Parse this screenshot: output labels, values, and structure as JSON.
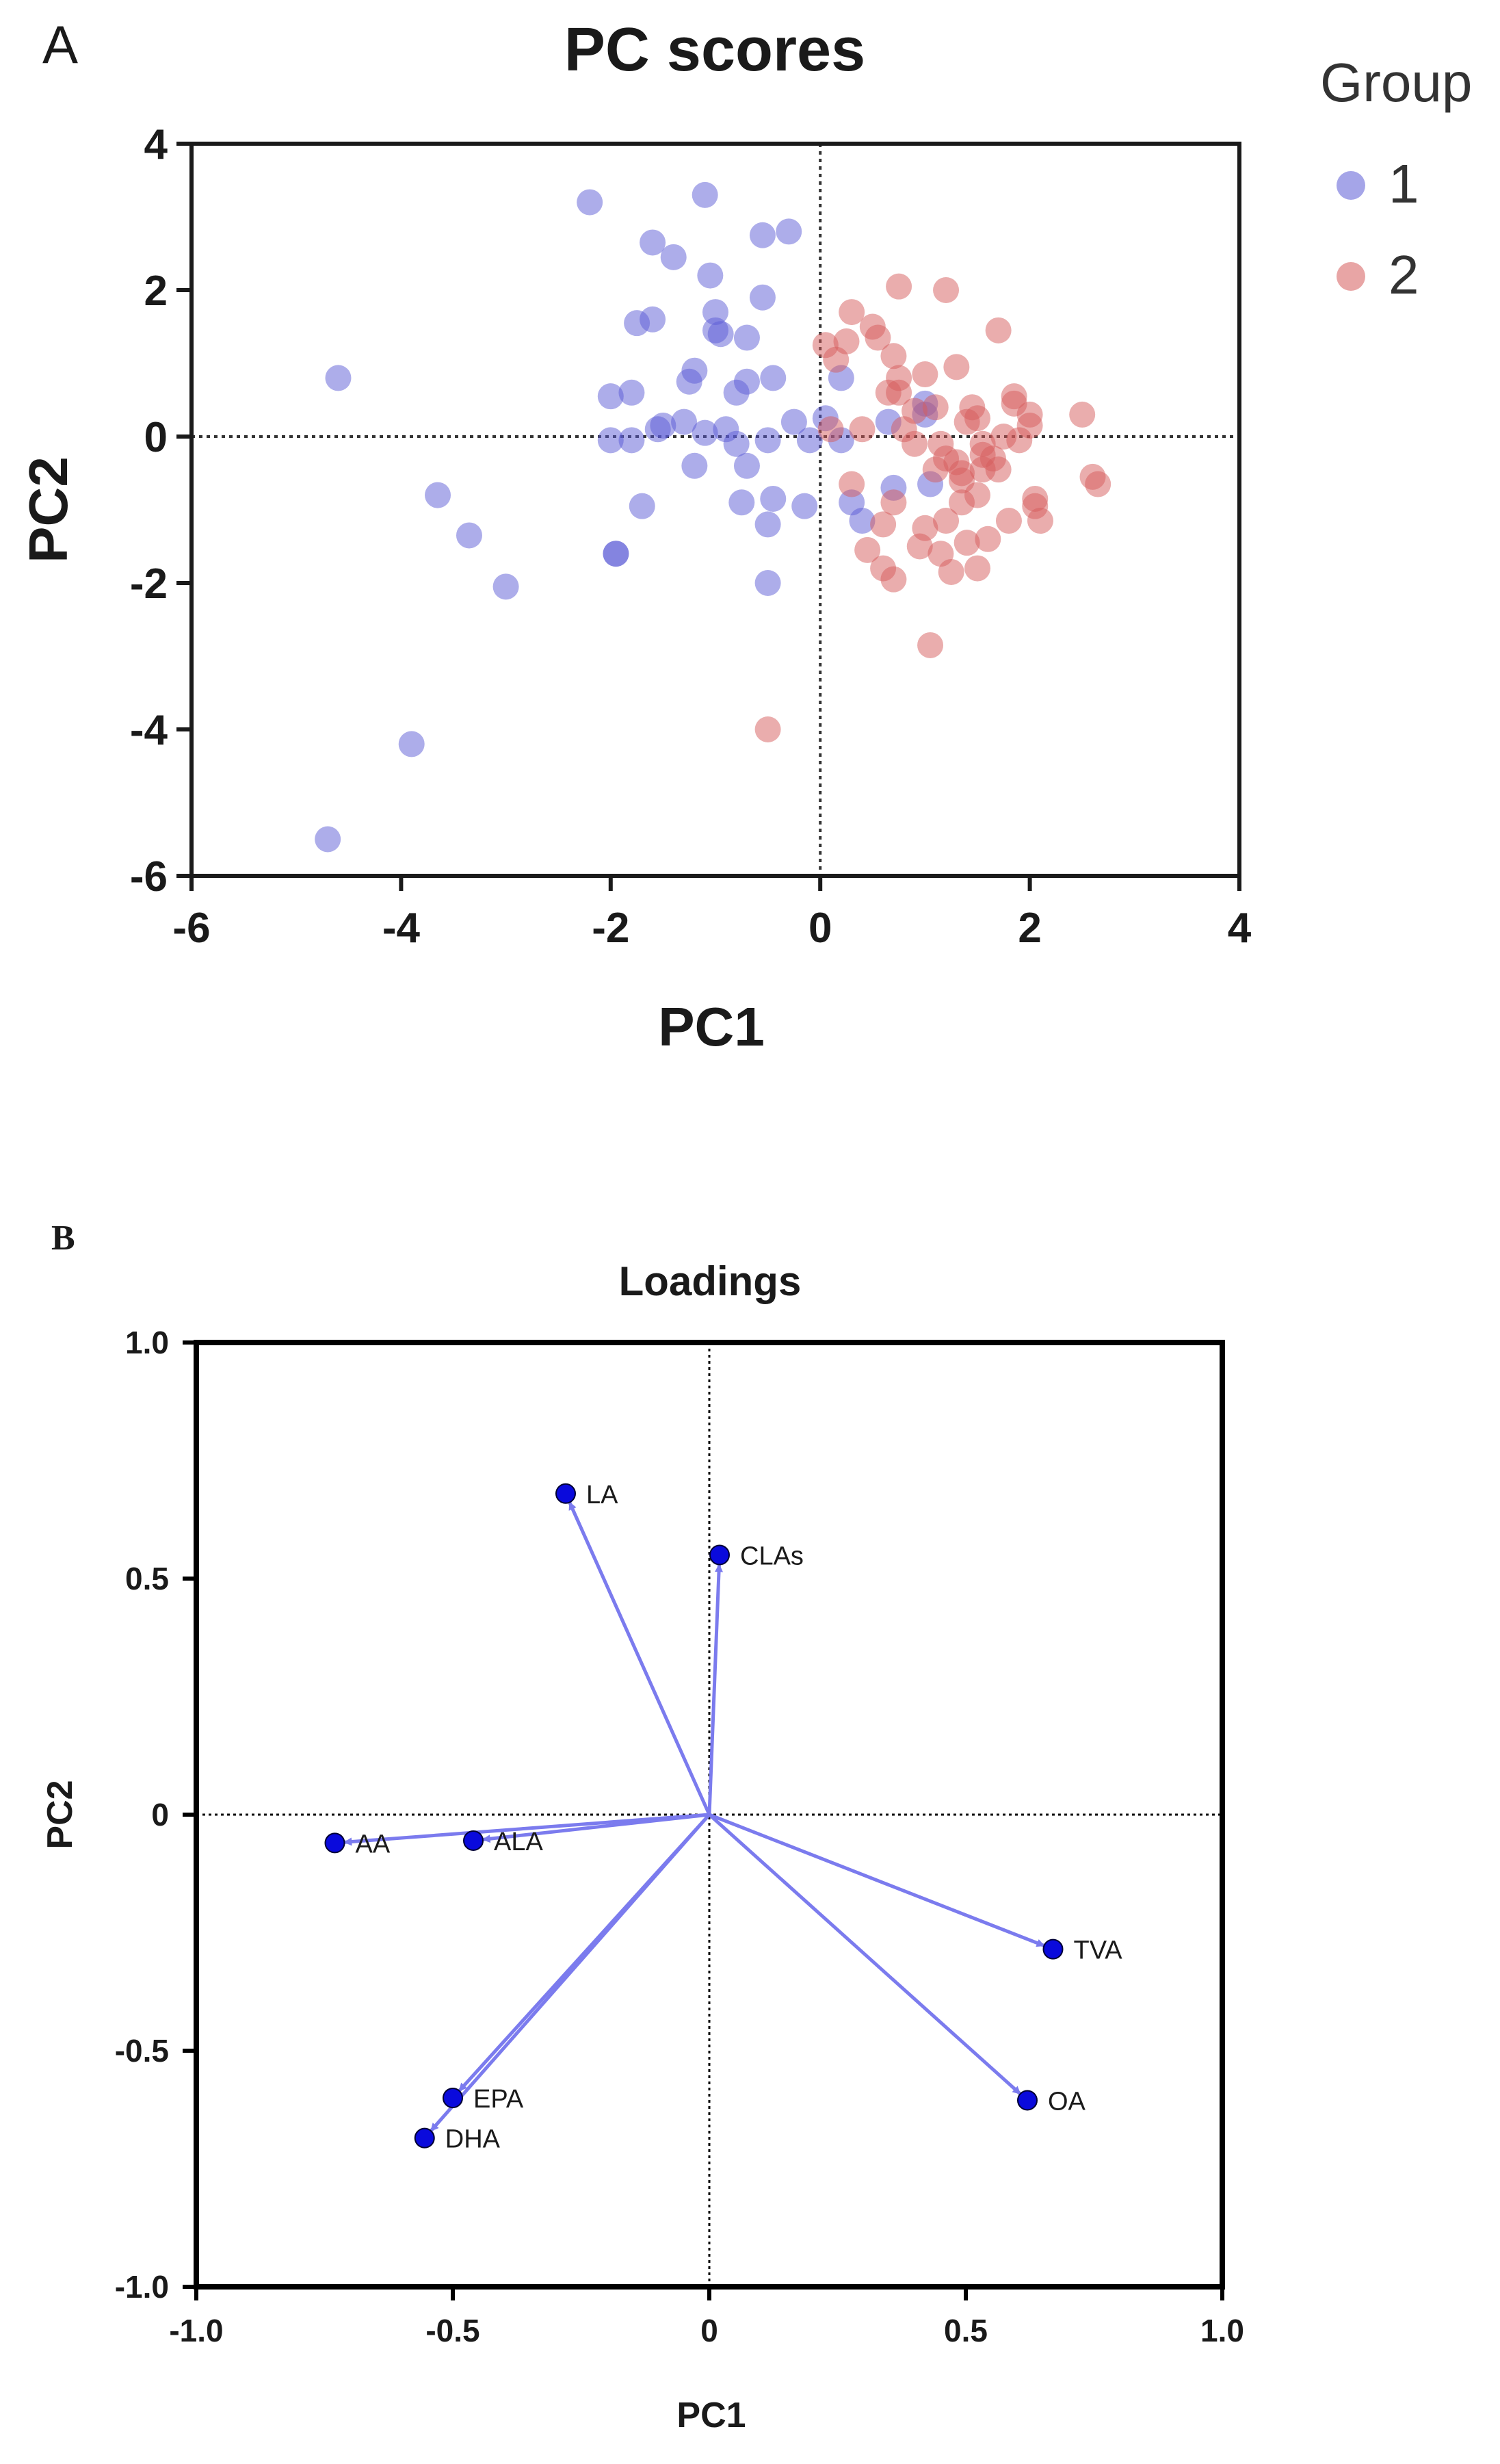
{
  "chart_data": [
    {
      "type": "scatter",
      "panel_label": "A",
      "title": "PC scores",
      "xlabel": "PC1",
      "ylabel": "PC2",
      "xlim": [
        -6,
        4
      ],
      "ylim": [
        -6,
        4
      ],
      "xticks": [
        "-6",
        "-4",
        "-2",
        "0",
        "2",
        "4"
      ],
      "yticks": [
        "4",
        "2",
        "0",
        "-2",
        "-4",
        "-6"
      ],
      "reference_lines": "dotted lines at x=0 and y=0",
      "legend": {
        "title": "Group",
        "position": "right"
      },
      "series": [
        {
          "name": "1",
          "color": "#5b5bd6",
          "points": [
            [
              -4.7,
              -5.5
            ],
            [
              -3.9,
              -4.2
            ],
            [
              -4.6,
              0.8
            ],
            [
              -3.65,
              -0.8
            ],
            [
              -3.35,
              -1.35
            ],
            [
              -3.0,
              -2.05
            ],
            [
              -2.2,
              3.2
            ],
            [
              -2.0,
              0.55
            ],
            [
              -2.0,
              -0.05
            ],
            [
              -1.95,
              -1.6
            ],
            [
              -1.95,
              -1.6
            ],
            [
              -1.8,
              0.6
            ],
            [
              -1.8,
              -0.05
            ],
            [
              -1.75,
              1.55
            ],
            [
              -1.7,
              -0.95
            ],
            [
              -1.6,
              2.65
            ],
            [
              -1.6,
              1.6
            ],
            [
              -1.55,
              0.1
            ],
            [
              -1.5,
              0.15
            ],
            [
              -1.4,
              2.45
            ],
            [
              -1.3,
              0.2
            ],
            [
              -1.25,
              0.75
            ],
            [
              -1.2,
              0.9
            ],
            [
              -1.2,
              -0.4
            ],
            [
              -1.1,
              3.3
            ],
            [
              -1.1,
              0.05
            ],
            [
              -1.05,
              2.2
            ],
            [
              -1.0,
              1.7
            ],
            [
              -1.0,
              1.45
            ],
            [
              -0.95,
              1.4
            ],
            [
              -0.9,
              0.1
            ],
            [
              -0.8,
              -0.1
            ],
            [
              -0.8,
              0.6
            ],
            [
              -0.75,
              -0.9
            ],
            [
              -0.7,
              0.75
            ],
            [
              -0.7,
              1.35
            ],
            [
              -0.7,
              -0.4
            ],
            [
              -0.55,
              2.75
            ],
            [
              -0.55,
              1.9
            ],
            [
              -0.5,
              -0.05
            ],
            [
              -0.5,
              -1.2
            ],
            [
              -0.5,
              -2.0
            ],
            [
              -0.45,
              0.8
            ],
            [
              -0.45,
              -0.85
            ],
            [
              -0.3,
              2.8
            ],
            [
              -0.25,
              0.2
            ],
            [
              -0.15,
              -0.95
            ],
            [
              -0.1,
              -0.05
            ],
            [
              0.05,
              0.25
            ],
            [
              0.2,
              0.8
            ],
            [
              0.3,
              -0.9
            ],
            [
              0.4,
              -1.15
            ],
            [
              0.65,
              0.2
            ],
            [
              0.7,
              -0.7
            ],
            [
              1.0,
              0.3
            ],
            [
              1.0,
              0.45
            ],
            [
              1.05,
              -0.65
            ],
            [
              0.2,
              -0.05
            ]
          ]
        },
        {
          "name": "2",
          "color": "#d65b5b",
          "points": [
            [
              -0.5,
              -4.0
            ],
            [
              0.05,
              1.25
            ],
            [
              0.1,
              0.1
            ],
            [
              0.15,
              1.05
            ],
            [
              0.25,
              1.3
            ],
            [
              0.3,
              1.7
            ],
            [
              0.3,
              -0.65
            ],
            [
              0.4,
              0.1
            ],
            [
              0.45,
              -1.55
            ],
            [
              0.5,
              1.5
            ],
            [
              0.55,
              1.35
            ],
            [
              0.6,
              -1.2
            ],
            [
              0.6,
              -1.8
            ],
            [
              0.65,
              0.6
            ],
            [
              0.7,
              1.1
            ],
            [
              0.7,
              -1.95
            ],
            [
              0.7,
              -0.9
            ],
            [
              0.75,
              0.8
            ],
            [
              0.75,
              0.6
            ],
            [
              0.75,
              2.05
            ],
            [
              0.8,
              0.1
            ],
            [
              0.9,
              -0.1
            ],
            [
              0.95,
              -1.5
            ],
            [
              1.0,
              -1.25
            ],
            [
              1.0,
              0.85
            ],
            [
              1.05,
              -2.85
            ],
            [
              1.1,
              0.4
            ],
            [
              1.1,
              -0.45
            ],
            [
              1.15,
              -0.1
            ],
            [
              1.2,
              2.0
            ],
            [
              1.2,
              -1.15
            ],
            [
              1.2,
              -0.3
            ],
            [
              1.25,
              -1.85
            ],
            [
              1.3,
              -0.35
            ],
            [
              1.35,
              -0.5
            ],
            [
              1.35,
              -0.6
            ],
            [
              1.35,
              -0.9
            ],
            [
              1.4,
              0.2
            ],
            [
              1.4,
              -1.45
            ],
            [
              1.45,
              0.4
            ],
            [
              1.5,
              0.25
            ],
            [
              1.5,
              -0.8
            ],
            [
              1.5,
              -1.8
            ],
            [
              1.55,
              -0.25
            ],
            [
              1.55,
              -0.1
            ],
            [
              1.6,
              -1.4
            ],
            [
              1.65,
              -0.3
            ],
            [
              1.7,
              -0.45
            ],
            [
              1.7,
              1.45
            ],
            [
              1.75,
              0.0
            ],
            [
              1.8,
              -1.15
            ],
            [
              1.85,
              0.55
            ],
            [
              1.85,
              0.45
            ],
            [
              1.9,
              -0.05
            ],
            [
              2.0,
              0.3
            ],
            [
              2.0,
              0.15
            ],
            [
              2.05,
              -0.85
            ],
            [
              2.05,
              -0.95
            ],
            [
              2.1,
              -1.15
            ],
            [
              2.5,
              0.3
            ],
            [
              2.6,
              -0.55
            ],
            [
              2.65,
              -0.65
            ],
            [
              1.55,
              -0.45
            ],
            [
              1.3,
              0.95
            ],
            [
              0.9,
              0.35
            ],
            [
              1.15,
              -1.6
            ]
          ]
        }
      ]
    },
    {
      "type": "scatter",
      "subtype": "biplot-loadings",
      "panel_label": "B",
      "title": "Loadings",
      "xlabel": "PC1",
      "ylabel": "PC2",
      "xlim": [
        -1.0,
        1.0
      ],
      "ylim": [
        -1.0,
        1.0
      ],
      "xticks": [
        "-1.0",
        "-0.5",
        "0",
        "0.5",
        "1.0"
      ],
      "yticks": [
        "1.0",
        "0.5",
        "0",
        "-0.5",
        "-1.0"
      ],
      "reference_lines": "dotted lines at x=0 and y=0",
      "point_color": "#0a0adc",
      "arrow_color": "#7b7bee",
      "points": [
        {
          "label": "LA",
          "x": -0.28,
          "y": 0.68
        },
        {
          "label": "CLAs",
          "x": 0.02,
          "y": 0.55
        },
        {
          "label": "AA",
          "x": -0.73,
          "y": -0.06
        },
        {
          "label": "ALA",
          "x": -0.46,
          "y": -0.055
        },
        {
          "label": "TVA",
          "x": 0.67,
          "y": -0.285
        },
        {
          "label": "EPA",
          "x": -0.5,
          "y": -0.6
        },
        {
          "label": "DHA",
          "x": -0.555,
          "y": -0.685
        },
        {
          "label": "OA",
          "x": 0.62,
          "y": -0.605
        }
      ]
    }
  ]
}
